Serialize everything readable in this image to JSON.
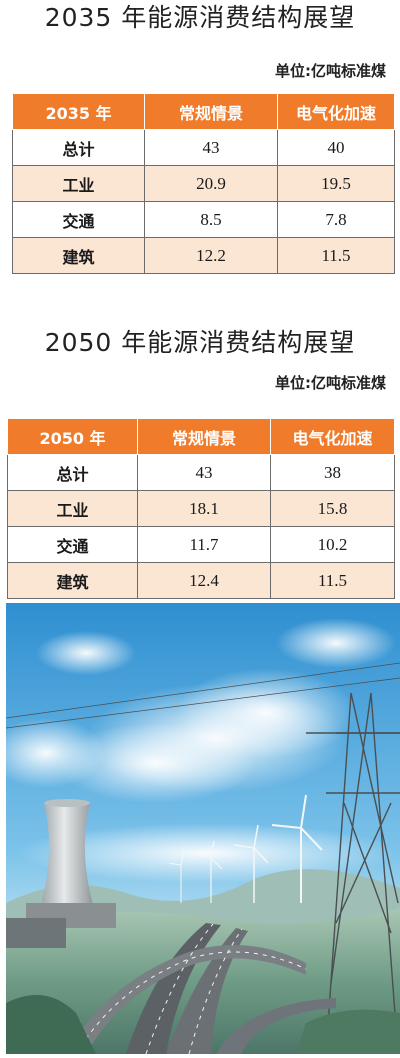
{
  "section1": {
    "title": "2035 年能源消费结构展望",
    "unit": "单位:亿吨标准煤",
    "headers": [
      "2035 年",
      "常规情景",
      "电气化加速"
    ],
    "rows": [
      {
        "label": "总计",
        "conventional": "43",
        "electrification": "40"
      },
      {
        "label": "工业",
        "conventional": "20.9",
        "electrification": "19.5"
      },
      {
        "label": "交通",
        "conventional": "8.5",
        "electrification": "7.8"
      },
      {
        "label": "建筑",
        "conventional": "12.2",
        "electrification": "11.5"
      }
    ]
  },
  "section2": {
    "title": "2050 年能源消费结构展望",
    "unit": "单位:亿吨标准煤",
    "headers": [
      "2050 年",
      "常规情景",
      "电气化加速"
    ],
    "rows": [
      {
        "label": "总计",
        "conventional": "43",
        "electrification": "38"
      },
      {
        "label": "工业",
        "conventional": "18.1",
        "electrification": "15.8"
      },
      {
        "label": "交通",
        "conventional": "11.7",
        "electrification": "10.2"
      },
      {
        "label": "建筑",
        "conventional": "12.4",
        "electrification": "11.5"
      }
    ]
  },
  "colors": {
    "header_orange": "#f07b2b",
    "row_tint": "#fbe6d4"
  },
  "photo": {
    "subject": "cooling-tower-wind-turbines-highway-power-pylon"
  }
}
